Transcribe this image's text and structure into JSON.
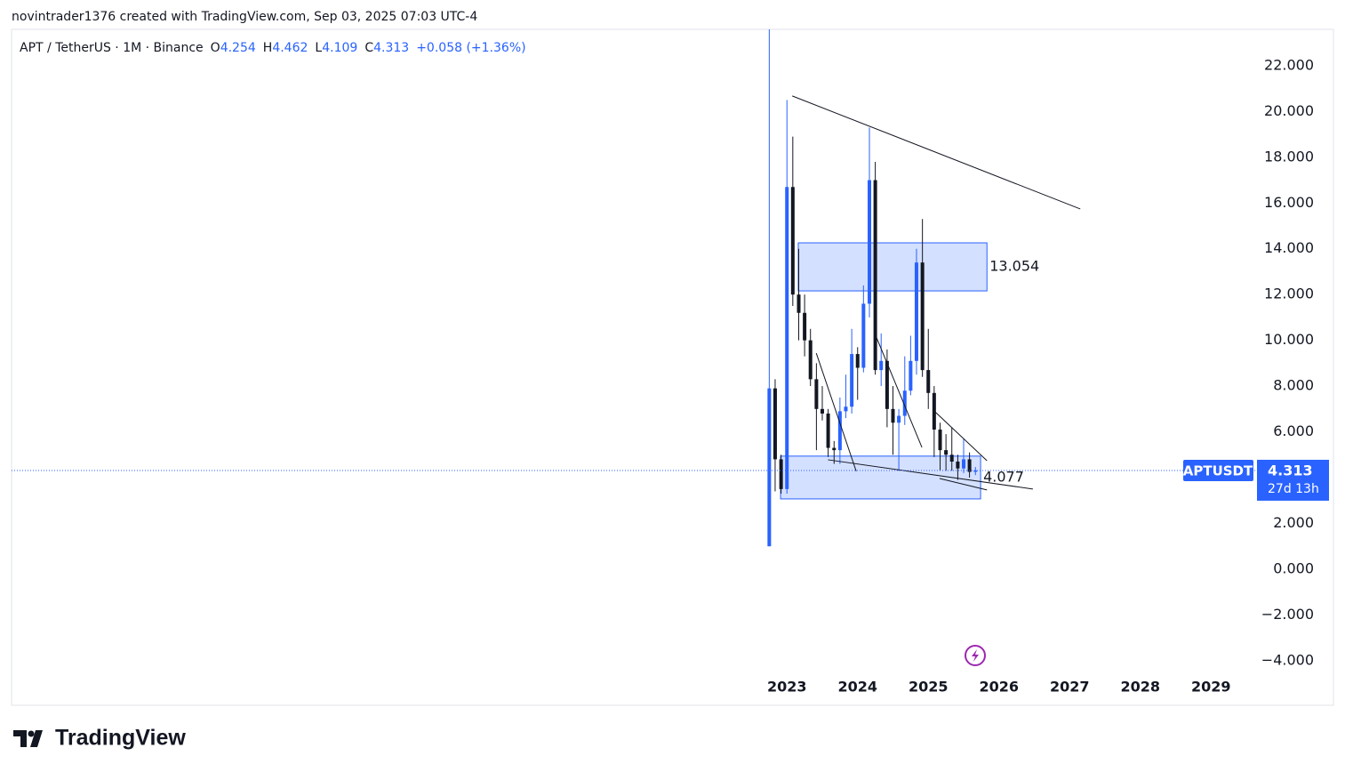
{
  "header": {
    "author_line": "novintrader1376 created with TradingView.com, Sep 03, 2025 07:03 UTC-4"
  },
  "chart_data": {
    "type": "candlestick",
    "symbol": "APT / TetherUS · 1M · Binance",
    "ohlc_labels": [
      "O",
      "H",
      "L",
      "C"
    ],
    "change": "+0.058 (+1.36%)",
    "ticker": "APTUSDT",
    "countdown": "27d 13h",
    "up_color": "#2962ff",
    "down_color": "#131722",
    "x": [
      2022.75,
      2022.833,
      2022.917,
      2023.0,
      2023.083,
      2023.167,
      2023.25,
      2023.333,
      2023.417,
      2023.5,
      2023.583,
      2023.667,
      2023.75,
      2023.833,
      2023.917,
      2024.0,
      2024.083,
      2024.167,
      2024.25,
      2024.333,
      2024.417,
      2024.5,
      2024.583,
      2024.667,
      2024.75,
      2024.833,
      2024.917,
      2025.0,
      2025.083,
      2025.167,
      2025.25,
      2025.333,
      2025.417,
      2025.5,
      2025.583,
      2025.667
    ],
    "open": [
      1.0,
      7.9,
      4.8,
      3.5,
      16.7,
      12.0,
      11.2,
      10.0,
      8.3,
      7.0,
      6.8,
      5.3,
      5.2,
      6.9,
      7.1,
      9.4,
      8.8,
      11.6,
      17.0,
      8.7,
      9.1,
      7.0,
      6.4,
      6.7,
      7.8,
      9.1,
      13.4,
      8.7,
      7.7,
      6.1,
      5.2,
      5.0,
      4.7,
      4.4,
      4.8,
      4.254
    ],
    "high": [
      23.6,
      8.3,
      5.0,
      20.5,
      18.9,
      14.0,
      12.0,
      10.5,
      9.0,
      8.0,
      7.0,
      5.6,
      7.5,
      8.5,
      10.5,
      9.7,
      12.4,
      19.3,
      17.8,
      10.3,
      9.6,
      8.0,
      7.0,
      9.3,
      10.2,
      14.0,
      15.3,
      10.5,
      8.0,
      6.4,
      5.9,
      6.2,
      5.0,
      5.7,
      5.1,
      4.462
    ],
    "low": [
      1.0,
      3.4,
      3.3,
      3.3,
      11.5,
      10.0,
      9.3,
      8.0,
      5.2,
      6.5,
      4.9,
      4.6,
      4.6,
      6.6,
      6.8,
      7.4,
      8.6,
      11.0,
      8.5,
      8.0,
      6.2,
      5.0,
      4.3,
      6.3,
      7.6,
      8.5,
      8.4,
      7.0,
      4.9,
      4.3,
      4.3,
      4.3,
      3.9,
      4.2,
      4.0,
      4.109
    ],
    "close": [
      7.9,
      4.8,
      3.5,
      16.7,
      12.0,
      11.2,
      10.0,
      8.3,
      7.0,
      6.8,
      5.3,
      5.2,
      6.9,
      7.1,
      9.4,
      8.8,
      11.6,
      17.0,
      8.7,
      9.1,
      7.0,
      6.4,
      6.7,
      7.8,
      9.1,
      13.4,
      8.7,
      7.7,
      6.1,
      5.2,
      5.0,
      4.7,
      4.4,
      4.8,
      4.25,
      4.313
    ],
    "xlim": [
      2012.03,
      2029.6
    ],
    "xticks": [
      2023,
      2024,
      2025,
      2026,
      2027,
      2028,
      2029
    ],
    "ylim": [
      -5.95,
      23.59
    ],
    "yticks": [
      {
        "value": -4,
        "label": "−4.000"
      },
      {
        "value": -2,
        "label": "−2.000"
      },
      {
        "value": 0,
        "label": "0.000"
      },
      {
        "value": 2,
        "label": "2.000"
      },
      {
        "value": 4,
        "label": "4.000"
      },
      {
        "value": 6,
        "label": "6.000"
      },
      {
        "value": 8,
        "label": "8.000"
      },
      {
        "value": 10,
        "label": "10.000"
      },
      {
        "value": 12,
        "label": "12.000"
      },
      {
        "value": 14,
        "label": "14.000"
      },
      {
        "value": 16,
        "label": "16.000"
      },
      {
        "value": 18,
        "label": "18.000"
      },
      {
        "value": 20,
        "label": "20.000"
      },
      {
        "value": 22,
        "label": "22.000"
      }
    ],
    "zones": [
      {
        "x": [
          2023.16,
          2025.83
        ],
        "y": [
          12.16,
          14.26
        ],
        "label": 13.054
      },
      {
        "x": [
          2022.91,
          2025.74
        ],
        "y": [
          3.07,
          4.94
        ],
        "label": 4.077
      }
    ],
    "trendlines": [
      {
        "x": [
          2023.075,
          2027.15
        ],
        "y": [
          20.68,
          15.74
        ]
      },
      {
        "x": [
          2023.415,
          2023.98
        ],
        "y": [
          9.44,
          4.28
        ]
      },
      {
        "x": [
          2024.27,
          2024.91
        ],
        "y": [
          10.1,
          5.32
        ]
      },
      {
        "x": [
          2025.08,
          2025.83
        ],
        "y": [
          6.92,
          4.74
        ]
      },
      {
        "x": [
          2023.58,
          2026.48
        ],
        "y": [
          4.78,
          3.5
        ]
      },
      {
        "x": [
          2025.16,
          2025.83
        ],
        "y": [
          3.96,
          3.46
        ]
      }
    ]
  },
  "footer": {
    "brand": "TradingView"
  }
}
